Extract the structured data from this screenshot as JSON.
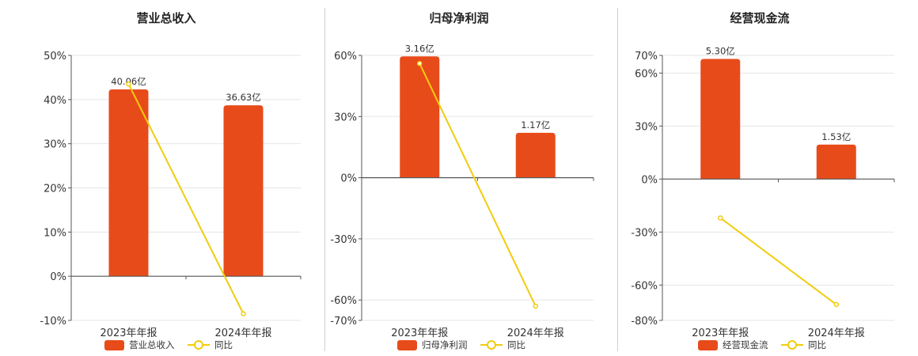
{
  "colors": {
    "bar": "#E84B1A",
    "line": "#F2CC0C",
    "grid": "#e6e6e6",
    "axis": "#555555"
  },
  "chart_data": [
    {
      "type": "bar",
      "title": "营业总收入",
      "categories": [
        "2023年年报",
        "2024年年报"
      ],
      "series": [
        {
          "name": "营业总收入",
          "kind": "bar",
          "values": [
            42.3,
            38.7
          ],
          "labels": [
            "40.06亿",
            "36.63亿"
          ]
        },
        {
          "name": "同比",
          "kind": "line",
          "values": [
            43.5,
            -8.5
          ]
        }
      ],
      "ylim": [
        -10,
        50
      ],
      "yticks": [
        -10,
        0,
        10,
        20,
        30,
        40,
        50
      ],
      "ytick_labels": [
        "-10%",
        "0%",
        "10%",
        "20%",
        "30%",
        "40%",
        "50%"
      ],
      "grid": true,
      "legend": "bottom"
    },
    {
      "type": "bar",
      "title": "归母净利润",
      "categories": [
        "2023年年报",
        "2024年年报"
      ],
      "series": [
        {
          "name": "归母净利润",
          "kind": "bar",
          "values": [
            59.5,
            22
          ],
          "labels": [
            "3.16亿",
            "1.17亿"
          ]
        },
        {
          "name": "同比",
          "kind": "line",
          "values": [
            56,
            -63
          ]
        }
      ],
      "ylim": [
        -70,
        60
      ],
      "yticks": [
        -70,
        -60,
        -30,
        0,
        30,
        60
      ],
      "ytick_labels": [
        "-70%",
        "-60%",
        "-30%",
        "0%",
        "30%",
        "60%"
      ],
      "grid": true,
      "legend": "bottom"
    },
    {
      "type": "bar",
      "title": "经营现金流",
      "categories": [
        "2023年年报",
        "2024年年报"
      ],
      "series": [
        {
          "name": "经营现金流",
          "kind": "bar",
          "values": [
            68,
            19.5
          ],
          "labels": [
            "5.30亿",
            "1.53亿"
          ]
        },
        {
          "name": "同比",
          "kind": "line",
          "values": [
            -22,
            -71
          ]
        }
      ],
      "ylim": [
        -80,
        70
      ],
      "yticks": [
        -80,
        -60,
        -30,
        0,
        30,
        60,
        70
      ],
      "ytick_labels": [
        "-80%",
        "-60%",
        "-30%",
        "0%",
        "30%",
        "60%",
        "70%"
      ],
      "grid": true,
      "legend": "bottom"
    }
  ]
}
